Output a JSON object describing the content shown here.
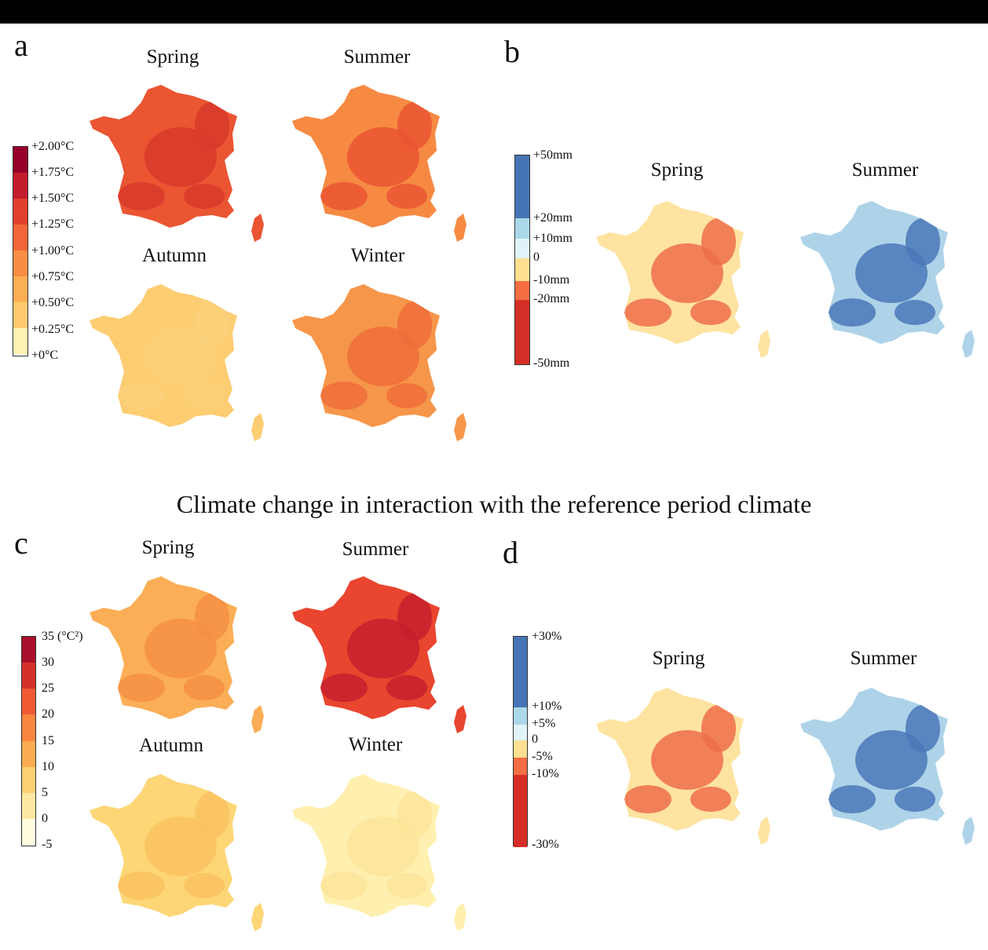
{
  "central_title": "Climate change in interaction with the reference period climate",
  "colors": {
    "temp_ramp": [
      "#fffce0",
      "#fff3b3",
      "#ffe08a",
      "#fdcb6e",
      "#fcae54",
      "#f88e43",
      "#f06638",
      "#e2402e",
      "#c31c2c",
      "#96002a"
    ],
    "precip_ramp": [
      "#d62f27",
      "#f46d43",
      "#fdae61",
      "#fee090",
      "#e0f3f8",
      "#abd9e9",
      "#74add1",
      "#4575b4"
    ]
  },
  "panels": {
    "a": {
      "letter": "a",
      "seasons": [
        "Spring",
        "Summer",
        "Autumn",
        "Winter"
      ],
      "legend_labels": [
        "+2.00°C",
        "+1.75°C",
        "+1.50°C",
        "+1.25°C",
        "+1.00°C",
        "+0.75°C",
        "+0.50°C",
        "+0.25°C",
        "+0°C"
      ],
      "map_fills": [
        "#ea5532",
        "#f68a43",
        "#fdcd72",
        "#f6964a"
      ],
      "map_patches": [
        "#d83a2c",
        "#ea5532",
        "#fad07a",
        "#ef6e3a"
      ]
    },
    "b": {
      "letter": "b",
      "seasons": [
        "Spring",
        "Summer"
      ],
      "legend_labels": [
        "+50mm",
        "+20mm",
        "+10mm",
        "0",
        "-10mm",
        "-20mm",
        "-50mm"
      ],
      "map_fills": [
        "#fee3a1",
        "#aed3e8"
      ],
      "map_patches": [
        "#ef6e4a",
        "#4a77b8"
      ]
    },
    "c": {
      "letter": "c",
      "seasons": [
        "Spring",
        "Summer",
        "Autumn",
        "Winter"
      ],
      "legend_labels": [
        "35 (°C²)",
        "30",
        "25",
        "20",
        "15",
        "10",
        "5",
        "0",
        "-5"
      ],
      "map_fills": [
        "#fbae56",
        "#e9452f",
        "#fdd676",
        "#fff0b0"
      ],
      "map_patches": [
        "#f58f45",
        "#c5202d",
        "#fbc261",
        "#fde49a"
      ]
    },
    "d": {
      "letter": "d",
      "seasons": [
        "Spring",
        "Summer"
      ],
      "legend_labels": [
        "+30%",
        "+10%",
        "+5%",
        "0",
        "-5%",
        "-10%",
        "-30%"
      ],
      "map_fills": [
        "#fee3a1",
        "#aed3e8"
      ],
      "map_patches": [
        "#ef6e4a",
        "#4a77b8"
      ]
    }
  }
}
